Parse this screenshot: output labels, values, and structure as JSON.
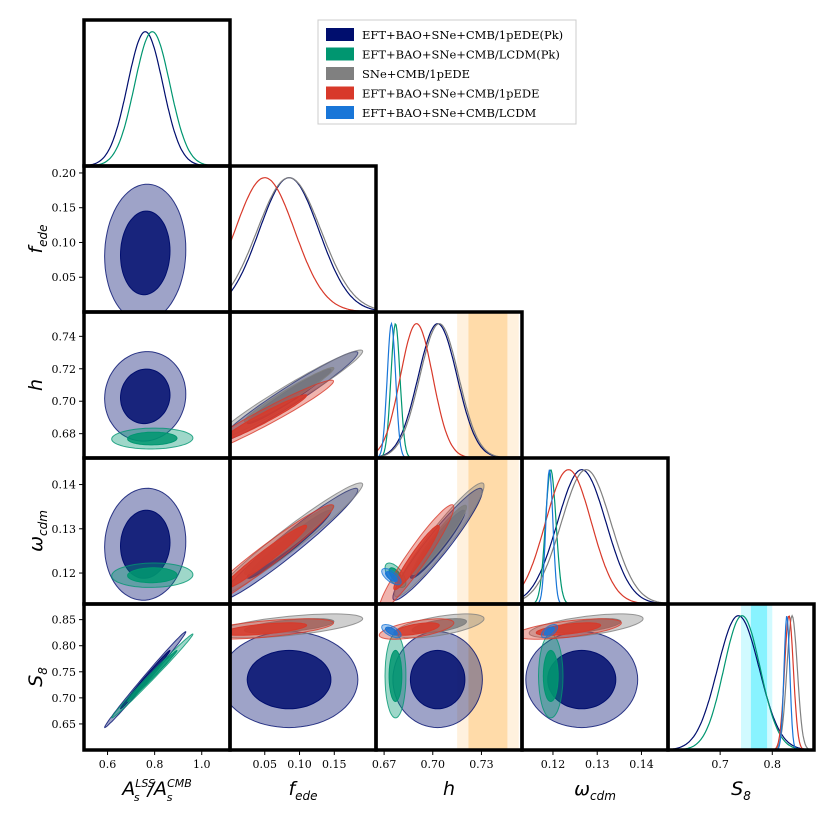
{
  "chart_data": {
    "type": "triangle-corner-plot",
    "parameters": [
      {
        "key": "as",
        "label": "A_s^LSS / A_s^CMB",
        "label_main": "A",
        "label_sup": "LSS",
        "label_slash": "/A",
        "label_sup2": "CMB",
        "label_sub": "s",
        "range": [
          0.5,
          1.12
        ],
        "ticks": [
          "0.6",
          "0.8",
          "1.0"
        ]
      },
      {
        "key": "fede",
        "label": "f_ede",
        "label_main": "f",
        "label_sub": "ede",
        "range": [
          0.0,
          0.21
        ],
        "ticks": [
          "0.05",
          "0.10",
          "0.15"
        ],
        "yticks": [
          "0.05",
          "0.10",
          "0.15",
          "0.20"
        ]
      },
      {
        "key": "h",
        "label": "h",
        "label_main": "h",
        "range": [
          0.665,
          0.755
        ],
        "ticks": [
          "0.67",
          "0.70",
          "0.73"
        ],
        "yticks": [
          "0.68",
          "0.70",
          "0.72",
          "0.74"
        ]
      },
      {
        "key": "wcdm",
        "label": "omega_cdm",
        "label_main": "ω",
        "label_sub": "cdm",
        "range": [
          0.113,
          0.146
        ],
        "ticks": [
          "0.12",
          "0.13",
          "0.14"
        ],
        "yticks": [
          "0.12",
          "0.13",
          "0.14"
        ]
      },
      {
        "key": "s8",
        "label": "S_8",
        "label_main": "S",
        "label_sub": "8",
        "range": [
          0.6,
          0.88
        ],
        "ticks": [
          "0.7",
          "0.8"
        ],
        "yticks": [
          "0.65",
          "0.70",
          "0.75",
          "0.80",
          "0.85"
        ]
      }
    ],
    "legend": [
      {
        "name": "EFT+BAO+SNe+CMB/1pEDE(Pk)",
        "color": "#000e6e"
      },
      {
        "name": "EFT+BAO+SNe+CMB/LCDM(Pk)",
        "color": "#009670"
      },
      {
        "name": "SNe+CMB/1pEDE",
        "color": "#808080"
      },
      {
        "name": "EFT+BAO+SNe+CMB/1pEDE",
        "color": "#d8392a"
      },
      {
        "name": "EFT+BAO+SNe+CMB/LCDM",
        "color": "#1976d8"
      }
    ],
    "bands": {
      "h": {
        "color": "#ffb347",
        "inner": [
          0.722,
          0.746
        ],
        "outer": [
          0.715,
          0.753
        ]
      },
      "s8": {
        "color": "#00e5ff",
        "inner": [
          0.759,
          0.79
        ],
        "outer": [
          0.74,
          0.8
        ]
      }
    },
    "series": [
      {
        "name": "EFT+BAO+SNe+CMB/1pEDE(Pk)",
        "color": "#000e6e",
        "mean": {
          "as": 0.76,
          "fede": 0.085,
          "h": 0.703,
          "wcdm": 0.1265,
          "s8": 0.735
        },
        "sigma": {
          "as": 0.075,
          "fede": 0.043,
          "h": 0.012,
          "wcdm": 0.0055,
          "s8": 0.04
        },
        "corr": {
          "as-fede": 0.05,
          "as-h": 0.05,
          "as-wcdm": 0.05,
          "as-s8": 0.995,
          "fede-h": 0.97,
          "fede-wcdm": 0.97,
          "h-wcdm": 0.95,
          "fede-s8": 0.0,
          "h-s8": 0.0,
          "wcdm-s8": 0.0
        }
      },
      {
        "name": "EFT+BAO+SNe+CMB/LCDM(Pk)",
        "color": "#009670",
        "mean": {
          "as": 0.79,
          "h": 0.677,
          "wcdm": 0.1195,
          "s8": 0.742
        },
        "sigma": {
          "as": 0.075,
          "h": 0.0028,
          "wcdm": 0.0012,
          "s8": 0.035
        },
        "corr": {
          "as-h": 0.05,
          "as-wcdm": 0.05,
          "as-s8": 0.995,
          "h-wcdm": -0.6,
          "h-s8": 0.0,
          "wcdm-s8": 0.0
        }
      },
      {
        "name": "SNe+CMB/1pEDE",
        "color": "#808080",
        "mean": {
          "fede": 0.085,
          "h": 0.704,
          "wcdm": 0.1275,
          "s8": 0.838
        },
        "sigma": {
          "fede": 0.046,
          "h": 0.012,
          "wcdm": 0.0056,
          "s8": 0.01
        },
        "corr": {
          "fede-h": 0.97,
          "fede-wcdm": 0.97,
          "h-wcdm": 0.95,
          "fede-s8": 0.6,
          "h-s8": 0.6,
          "wcdm-s8": 0.6
        }
      },
      {
        "name": "EFT+BAO+SNe+CMB/1pEDE",
        "color": "#d8392a",
        "mean": {
          "fede": 0.05,
          "h": 0.69,
          "wcdm": 0.1235,
          "s8": 0.832
        },
        "sigma": {
          "fede": 0.043,
          "h": 0.01,
          "wcdm": 0.0052,
          "s8": 0.0085
        },
        "corr": {
          "fede-h": 0.97,
          "fede-wcdm": 0.97,
          "h-wcdm": 0.95,
          "fede-s8": 0.6,
          "h-s8": 0.6,
          "wcdm-s8": 0.6
        }
      },
      {
        "name": "EFT+BAO+SNe+CMB/LCDM",
        "color": "#1976d8",
        "mean": {
          "h": 0.6745,
          "wcdm": 0.1192,
          "s8": 0.828
        },
        "sigma": {
          "h": 0.0026,
          "wcdm": 0.0008,
          "s8": 0.0055
        },
        "corr": {
          "h-wcdm": -0.65,
          "h-s8": -0.6,
          "wcdm-s8": 0.6
        }
      }
    ]
  }
}
